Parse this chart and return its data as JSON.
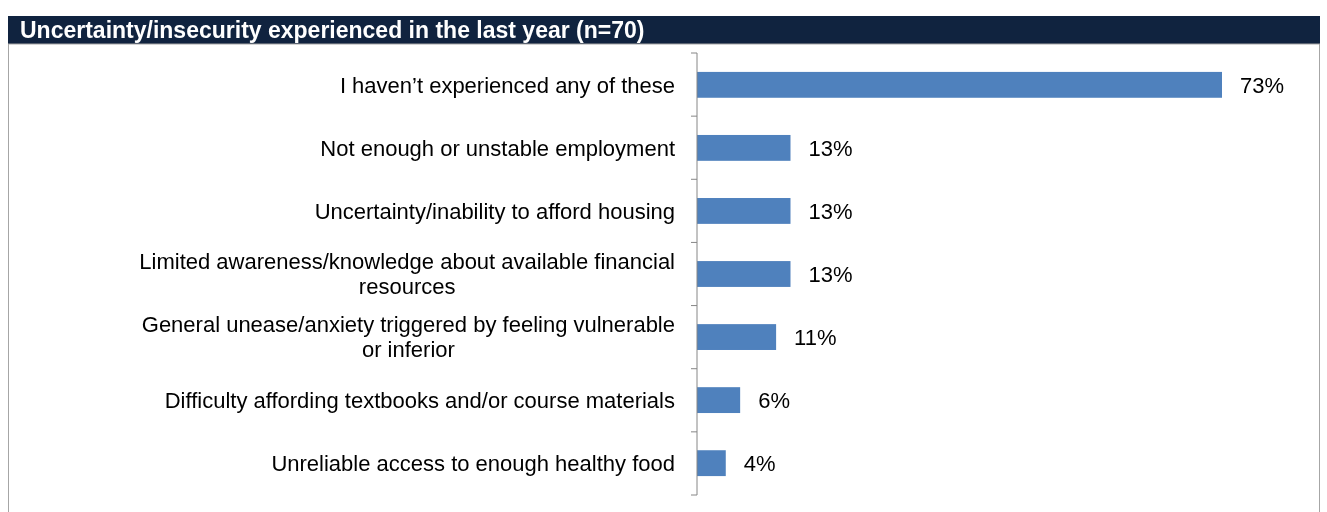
{
  "chart_data": {
    "type": "bar",
    "orientation": "horizontal",
    "title": "Uncertainty/insecurity experienced in the last year (n=70)",
    "categories": [
      "I haven’t experienced any of these",
      "Not enough or unstable employment",
      "Uncertainty/inability to afford housing",
      "Limited awareness/knowledge about available financial resources",
      "General unease/anxiety triggered by feeling vulnerable or inferior",
      "Difficulty affording textbooks and/or course materials",
      "Unreliable access to enough healthy food"
    ],
    "values": [
      73,
      13,
      13,
      13,
      11,
      6,
      4
    ],
    "value_labels": [
      "73%",
      "13%",
      "13%",
      "13%",
      "11%",
      "6%",
      "4%"
    ],
    "color": "#4f81bd"
  }
}
